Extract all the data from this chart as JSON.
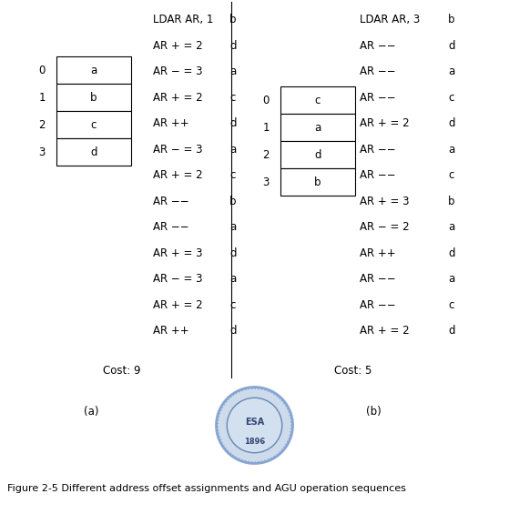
{
  "left_array": {
    "indices": [
      0,
      1,
      2,
      3
    ],
    "values": [
      "a",
      "b",
      "c",
      "d"
    ]
  },
  "right_array": {
    "indices": [
      0,
      1,
      2,
      3
    ],
    "values": [
      "c",
      "a",
      "d",
      "b"
    ]
  },
  "left_ops": [
    [
      "LDAR AR, 1",
      "b"
    ],
    [
      "AR + = 2",
      "d"
    ],
    [
      "AR − = 3",
      "a"
    ],
    [
      "AR + = 2",
      "c"
    ],
    [
      "AR ++",
      "d"
    ],
    [
      "AR − = 3",
      "a"
    ],
    [
      "AR + = 2",
      "c"
    ],
    [
      "AR −−",
      "b"
    ],
    [
      "AR −−",
      "a"
    ],
    [
      "AR + = 3",
      "d"
    ],
    [
      "AR − = 3",
      "a"
    ],
    [
      "AR + = 2",
      "c"
    ],
    [
      "AR ++",
      "d"
    ]
  ],
  "right_ops": [
    [
      "LDAR AR, 3",
      "b"
    ],
    [
      "AR −−",
      "d"
    ],
    [
      "AR −−",
      "a"
    ],
    [
      "AR −−",
      "c"
    ],
    [
      "AR + = 2",
      "d"
    ],
    [
      "AR −−",
      "a"
    ],
    [
      "AR −−",
      "c"
    ],
    [
      "AR + = 3",
      "b"
    ],
    [
      "AR − = 2",
      "a"
    ],
    [
      "AR ++",
      "d"
    ],
    [
      "AR −−",
      "a"
    ],
    [
      "AR −−",
      "c"
    ],
    [
      "AR + = 2",
      "d"
    ]
  ],
  "left_cost": "Cost: 9",
  "right_cost": "Cost: 5",
  "label_a": "(a)",
  "label_b": "(b)",
  "figure_caption": "Figure 2-5 Different address offset assignments and AGU operation sequences",
  "bg_color": "#ffffff",
  "text_color": "#000000",
  "font_size": 8.5,
  "caption_font_size": 8.0
}
